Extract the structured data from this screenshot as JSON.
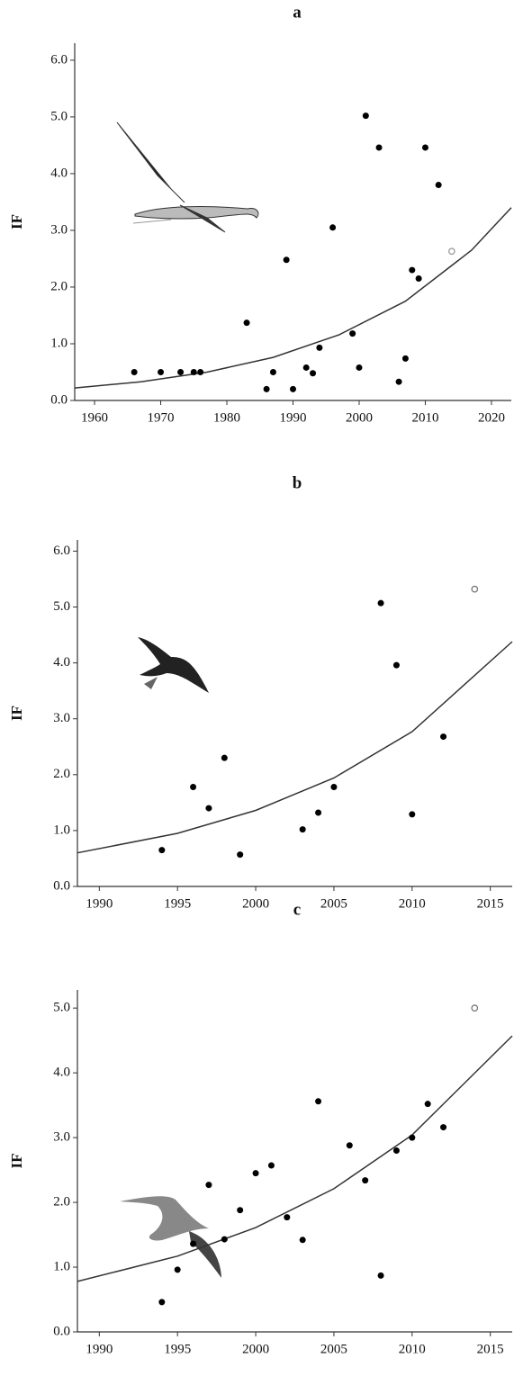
{
  "chart_data": [
    {
      "type": "scatter",
      "title": "a",
      "ylabel": "IF",
      "xlim": [
        1957,
        2023
      ],
      "ylim": [
        0,
        6.3
      ],
      "xticks": [
        1960,
        1970,
        1980,
        1990,
        2000,
        2010,
        2020
      ],
      "yticks": [
        {
          "value": 0,
          "label": "0.0"
        },
        {
          "value": 1,
          "label": "1.0"
        },
        {
          "value": 2,
          "label": "2.0"
        },
        {
          "value": 3,
          "label": "3.0"
        },
        {
          "value": 4,
          "label": "4.0"
        },
        {
          "value": 5,
          "label": "5.0"
        },
        {
          "value": 6,
          "label": "6.0"
        }
      ],
      "color": "#000000",
      "x": [
        1966,
        1970,
        1973,
        1975,
        1976,
        1983,
        1986,
        1987,
        1989,
        1990,
        1992,
        1993,
        1994,
        1996,
        1999,
        2000,
        2001,
        2003,
        2006,
        2007,
        2008,
        2009,
        2010,
        2012
      ],
      "values": [
        0.5,
        0.5,
        0.5,
        0.5,
        0.5,
        1.37,
        0.2,
        0.5,
        2.48,
        0.2,
        0.58,
        0.48,
        0.93,
        3.05,
        1.18,
        0.58,
        5.02,
        4.46,
        0.33,
        0.74,
        2.3,
        2.15,
        4.46,
        3.8
      ],
      "highlight": {
        "x": 2014,
        "value": 2.63,
        "color": "#999999"
      },
      "fit": {
        "x": [
          1957,
          1967,
          1977,
          1987,
          1997,
          2007,
          2017,
          2023
        ],
        "values": [
          0.22,
          0.33,
          0.5,
          0.76,
          1.16,
          1.75,
          2.65,
          3.4
        ],
        "color": "#333333"
      }
    },
    {
      "type": "scatter",
      "title": "b",
      "ylabel": "IF",
      "xlim": [
        1988.6,
        2016.4
      ],
      "ylim": [
        0,
        6.2
      ],
      "xticks": [
        1990,
        1995,
        2000,
        2005,
        2010,
        2015
      ],
      "yticks": [
        {
          "value": 0,
          "label": "0.0"
        },
        {
          "value": 1,
          "label": "1.0"
        },
        {
          "value": 2,
          "label": "2.0"
        },
        {
          "value": 3,
          "label": "3.0"
        },
        {
          "value": 4,
          "label": "4.0"
        },
        {
          "value": 5,
          "label": "5.0"
        },
        {
          "value": 6,
          "label": "6.0"
        }
      ],
      "color": "#000000",
      "x": [
        1994,
        1996,
        1997,
        1998,
        1999,
        2003,
        2004,
        2005,
        2008,
        2009,
        2010,
        2012
      ],
      "values": [
        0.65,
        1.78,
        1.4,
        2.3,
        0.57,
        1.02,
        1.32,
        1.78,
        5.07,
        3.96,
        1.29,
        2.68
      ],
      "highlight": {
        "x": 2014,
        "value": 5.32,
        "color": "#777777"
      },
      "fit": {
        "x": [
          1988.6,
          1995,
          2000,
          2005,
          2010,
          2016.4
        ],
        "values": [
          0.6,
          0.95,
          1.36,
          1.94,
          2.77,
          4.38
        ],
        "color": "#333333"
      }
    },
    {
      "type": "scatter",
      "title": "c",
      "ylabel": "IF",
      "xlim": [
        1988.6,
        2016.4
      ],
      "ylim": [
        0,
        5.28
      ],
      "xticks": [
        1990,
        1995,
        2000,
        2005,
        2010,
        2015
      ],
      "yticks": [
        {
          "value": 0,
          "label": "0.0"
        },
        {
          "value": 1,
          "label": "1.0"
        },
        {
          "value": 2,
          "label": "2.0"
        },
        {
          "value": 3,
          "label": "3.0"
        },
        {
          "value": 4,
          "label": "4.0"
        },
        {
          "value": 5,
          "label": "5.0"
        }
      ],
      "color": "#000000",
      "x": [
        1994,
        1995,
        1996,
        1997,
        1998,
        1999,
        2000,
        2001,
        2002,
        2003,
        2004,
        2006,
        2007,
        2008,
        2009,
        2010,
        2011,
        2012
      ],
      "values": [
        0.46,
        0.96,
        1.36,
        2.27,
        1.43,
        1.88,
        2.45,
        2.57,
        1.77,
        1.42,
        3.56,
        2.88,
        2.34,
        0.87,
        2.8,
        3.0,
        3.52,
        3.16
      ],
      "highlight": {
        "x": 2014,
        "value": 5.0,
        "color": "#777777"
      },
      "fit": {
        "x": [
          1988.6,
          1995,
          2000,
          2005,
          2010,
          2016.4
        ],
        "values": [
          0.78,
          1.17,
          1.61,
          2.21,
          3.04,
          4.57
        ],
        "color": "#333333"
      }
    }
  ]
}
